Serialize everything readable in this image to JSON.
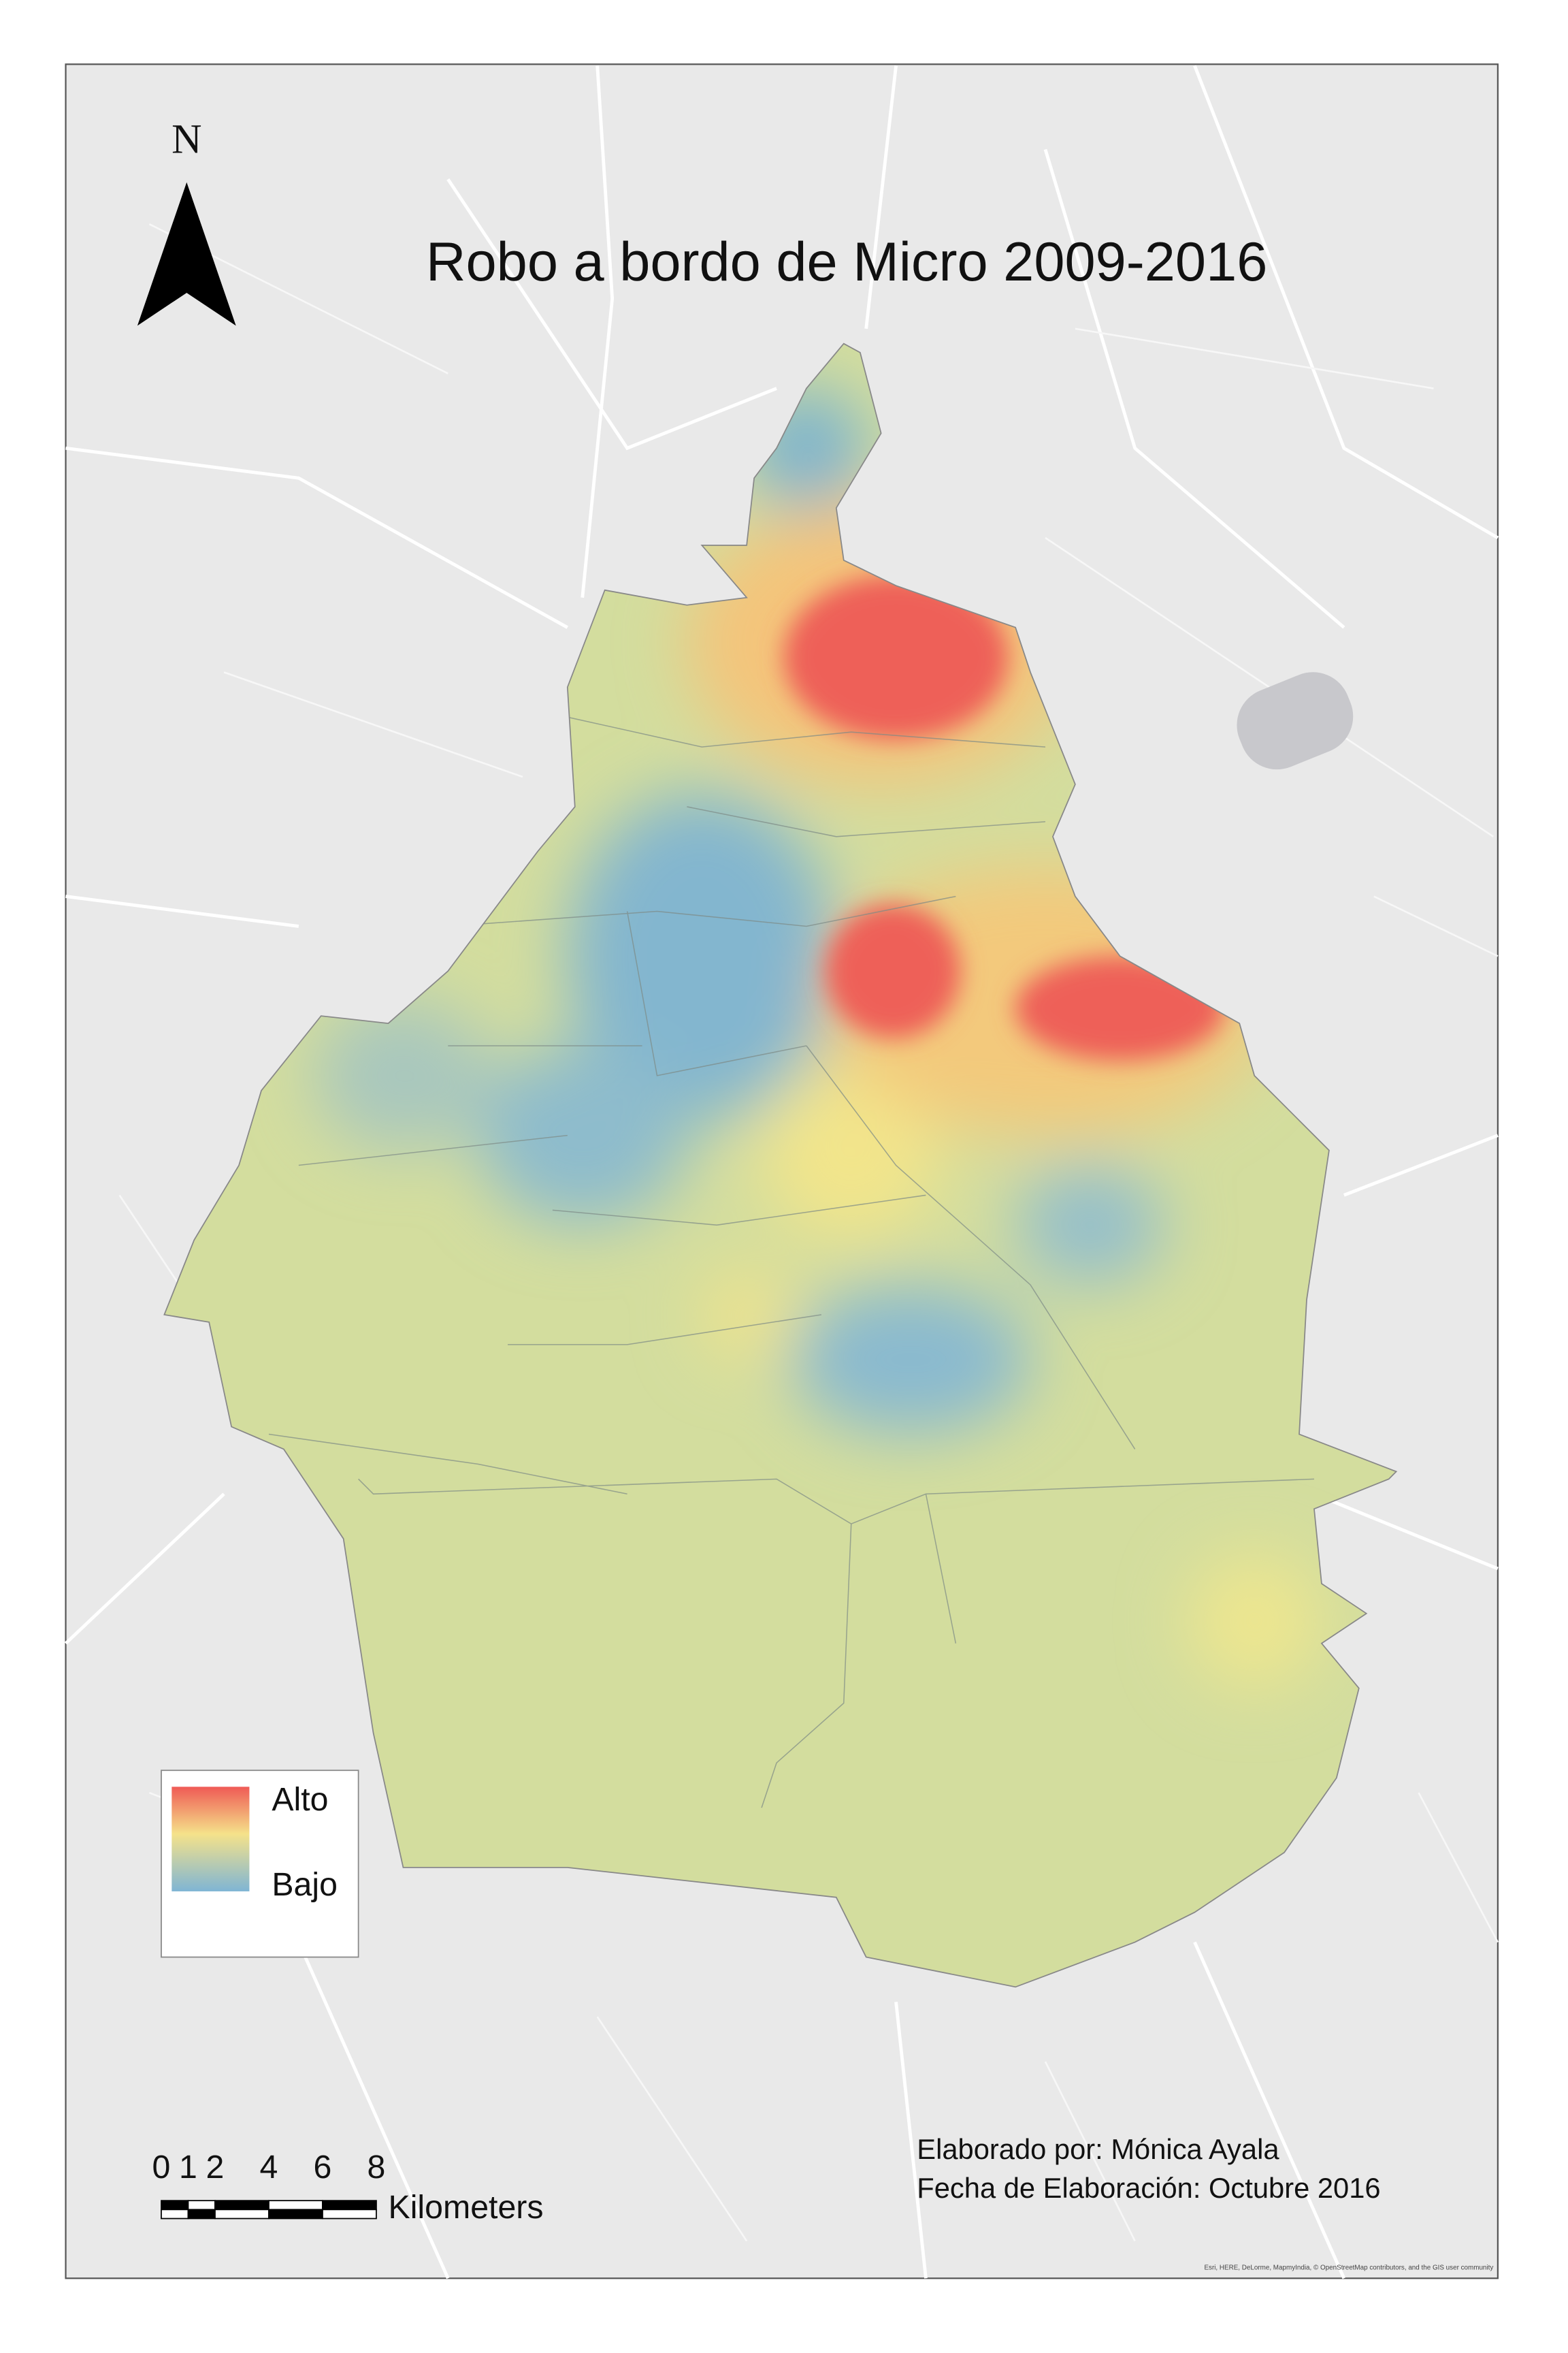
{
  "map": {
    "title": "Robo a bordo de Micro 2009-2016",
    "north_label": "N",
    "legend": {
      "high": "Alto",
      "low": "Bajo"
    },
    "scale": {
      "ticks": [
        0,
        1,
        2,
        4,
        6,
        8
      ],
      "unit": "Kilometers"
    },
    "credits": [
      "Elaborado por: Mónica Ayala",
      "Fecha de Elaboración: Octubre 2016"
    ],
    "attribution": "Esri, HERE, DeLorme, MapmyIndia, © OpenStreetMap contributors, and the GIS user community"
  }
}
